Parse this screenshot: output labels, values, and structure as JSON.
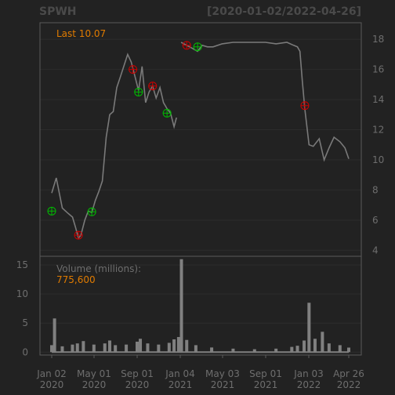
{
  "header": {
    "symbol": "SPWH",
    "range": "[2020-01-02/2022-04-26]"
  },
  "price_panel": {
    "last_label": "Last 10.07"
  },
  "volume_panel": {
    "label": "Volume (millions):",
    "last_value": "775,600"
  },
  "chart_data": [
    {
      "type": "line",
      "title": "SPWH",
      "subtitle": "[2020-01-02/2022-04-26]",
      "ylim": [
        3.6,
        19.1
      ],
      "y_ticks": [
        4,
        6,
        8,
        10,
        12,
        14,
        16,
        18
      ],
      "series": [
        {
          "x": [
            "2020-01-02",
            "2020-01-15",
            "2020-02-01",
            "2020-02-15",
            "2020-03-01",
            "2020-03-10",
            "2020-03-18",
            "2020-03-25",
            "2020-04-05",
            "2020-04-15",
            "2020-04-25",
            "2020-05-05",
            "2020-05-15",
            "2020-05-25",
            "2020-06-05",
            "2020-06-15",
            "2020-06-25",
            "2020-07-05",
            "2020-07-15",
            "2020-07-25",
            "2020-08-05",
            "2020-08-15",
            "2020-08-25",
            "2020-09-05",
            "2020-09-15",
            "2020-09-25",
            "2020-10-05",
            "2020-10-15",
            "2020-10-25",
            "2020-11-05",
            "2020-11-15",
            "2020-11-25",
            "2020-12-05",
            "2020-12-15",
            "2020-12-22",
            "2021-01-04",
            "2021-01-20",
            "2021-02-05",
            "2021-02-20",
            "2021-03-05",
            "2021-03-20",
            "2021-04-05",
            "2021-05-01",
            "2021-06-01",
            "2021-07-01",
            "2021-08-01",
            "2021-09-01",
            "2021-10-01",
            "2021-11-01",
            "2021-11-20",
            "2021-12-01",
            "2021-12-08",
            "2021-12-15",
            "2021-12-22",
            "2022-01-03",
            "2022-01-15",
            "2022-02-01",
            "2022-02-15",
            "2022-03-01",
            "2022-03-15",
            "2022-04-01",
            "2022-04-15",
            "2022-04-26"
          ],
          "values": [
            7.8,
            8.8,
            6.8,
            6.5,
            6.2,
            5.5,
            4.8,
            5.0,
            6.0,
            6.6,
            6.5,
            7.3,
            7.9,
            8.6,
            11.5,
            13.0,
            13.2,
            14.8,
            15.5,
            16.2,
            17.0,
            16.5,
            15.6,
            14.6,
            16.2,
            13.8,
            14.5,
            14.9,
            14.1,
            14.8,
            13.8,
            13.4,
            13.1,
            12.2,
            12.8,
            17.8,
            17.6,
            17.4,
            17.2,
            17.6,
            17.5,
            17.5,
            17.7,
            17.8,
            17.8,
            17.8,
            17.8,
            17.7,
            17.8,
            17.6,
            17.5,
            17.2,
            15.2,
            13.4,
            11.0,
            10.9,
            11.4,
            10.0,
            10.8,
            11.5,
            11.2,
            10.8,
            10.07
          ]
        }
      ],
      "markers": [
        {
          "x": "2020-01-02",
          "y": 6.6,
          "color": "#00bb00"
        },
        {
          "x": "2020-03-18",
          "y": 5.0,
          "color": "#cc0000"
        },
        {
          "x": "2020-04-25",
          "y": 6.55,
          "color": "#00bb00"
        },
        {
          "x": "2020-08-20",
          "y": 16.0,
          "color": "#cc0000"
        },
        {
          "x": "2020-09-05",
          "y": 14.5,
          "color": "#00bb00"
        },
        {
          "x": "2020-10-15",
          "y": 14.9,
          "color": "#cc0000"
        },
        {
          "x": "2020-11-25",
          "y": 13.1,
          "color": "#00bb00"
        },
        {
          "x": "2021-01-20",
          "y": 17.6,
          "color": "#cc0000"
        },
        {
          "x": "2021-02-20",
          "y": 17.5,
          "color": "#00bb00"
        },
        {
          "x": "2021-12-22",
          "y": 13.6,
          "color": "#cc0000"
        }
      ],
      "line_color": "#7a7a7a"
    },
    {
      "type": "bar",
      "title": "Volume (millions):",
      "ylim": [
        -0.5,
        16.5
      ],
      "y_ticks": [
        0,
        5,
        10,
        15
      ],
      "x": [
        "2020-01-02",
        "2020-01-10",
        "2020-02-01",
        "2020-03-01",
        "2020-03-15",
        "2020-04-01",
        "2020-05-01",
        "2020-06-01",
        "2020-06-15",
        "2020-07-01",
        "2020-08-01",
        "2020-09-01",
        "2020-09-10",
        "2020-10-01",
        "2020-11-01",
        "2020-12-01",
        "2020-12-15",
        "2020-12-28",
        "2021-01-05",
        "2021-01-20",
        "2021-02-15",
        "2021-04-01",
        "2021-06-01",
        "2021-08-01",
        "2021-10-01",
        "2021-11-15",
        "2021-12-01",
        "2021-12-20",
        "2022-01-03",
        "2022-01-20",
        "2022-02-10",
        "2022-03-01",
        "2022-04-01",
        "2022-04-26"
      ],
      "values": [
        1.2,
        5.8,
        1.0,
        1.3,
        1.5,
        1.9,
        1.3,
        1.5,
        2.0,
        1.2,
        1.3,
        1.8,
        2.3,
        1.5,
        1.3,
        1.6,
        2.2,
        2.6,
        16.0,
        2.1,
        1.2,
        0.8,
        0.6,
        0.5,
        0.6,
        0.9,
        1.1,
        2.0,
        8.5,
        2.3,
        3.5,
        1.5,
        1.2,
        0.78
      ],
      "bar_color": "#808080"
    }
  ],
  "x_axis": {
    "ticks": [
      {
        "top": "Jan 02",
        "bottom": "2020"
      },
      {
        "top": "May 01",
        "bottom": "2020"
      },
      {
        "top": "Sep 01",
        "bottom": "2020"
      },
      {
        "top": "Jan 04",
        "bottom": "2021"
      },
      {
        "top": "May 03",
        "bottom": "2021"
      },
      {
        "top": "Sep 01",
        "bottom": "2021"
      },
      {
        "top": "Jan 03",
        "bottom": "2022"
      },
      {
        "top": "Apr 26",
        "bottom": "2022"
      }
    ]
  }
}
